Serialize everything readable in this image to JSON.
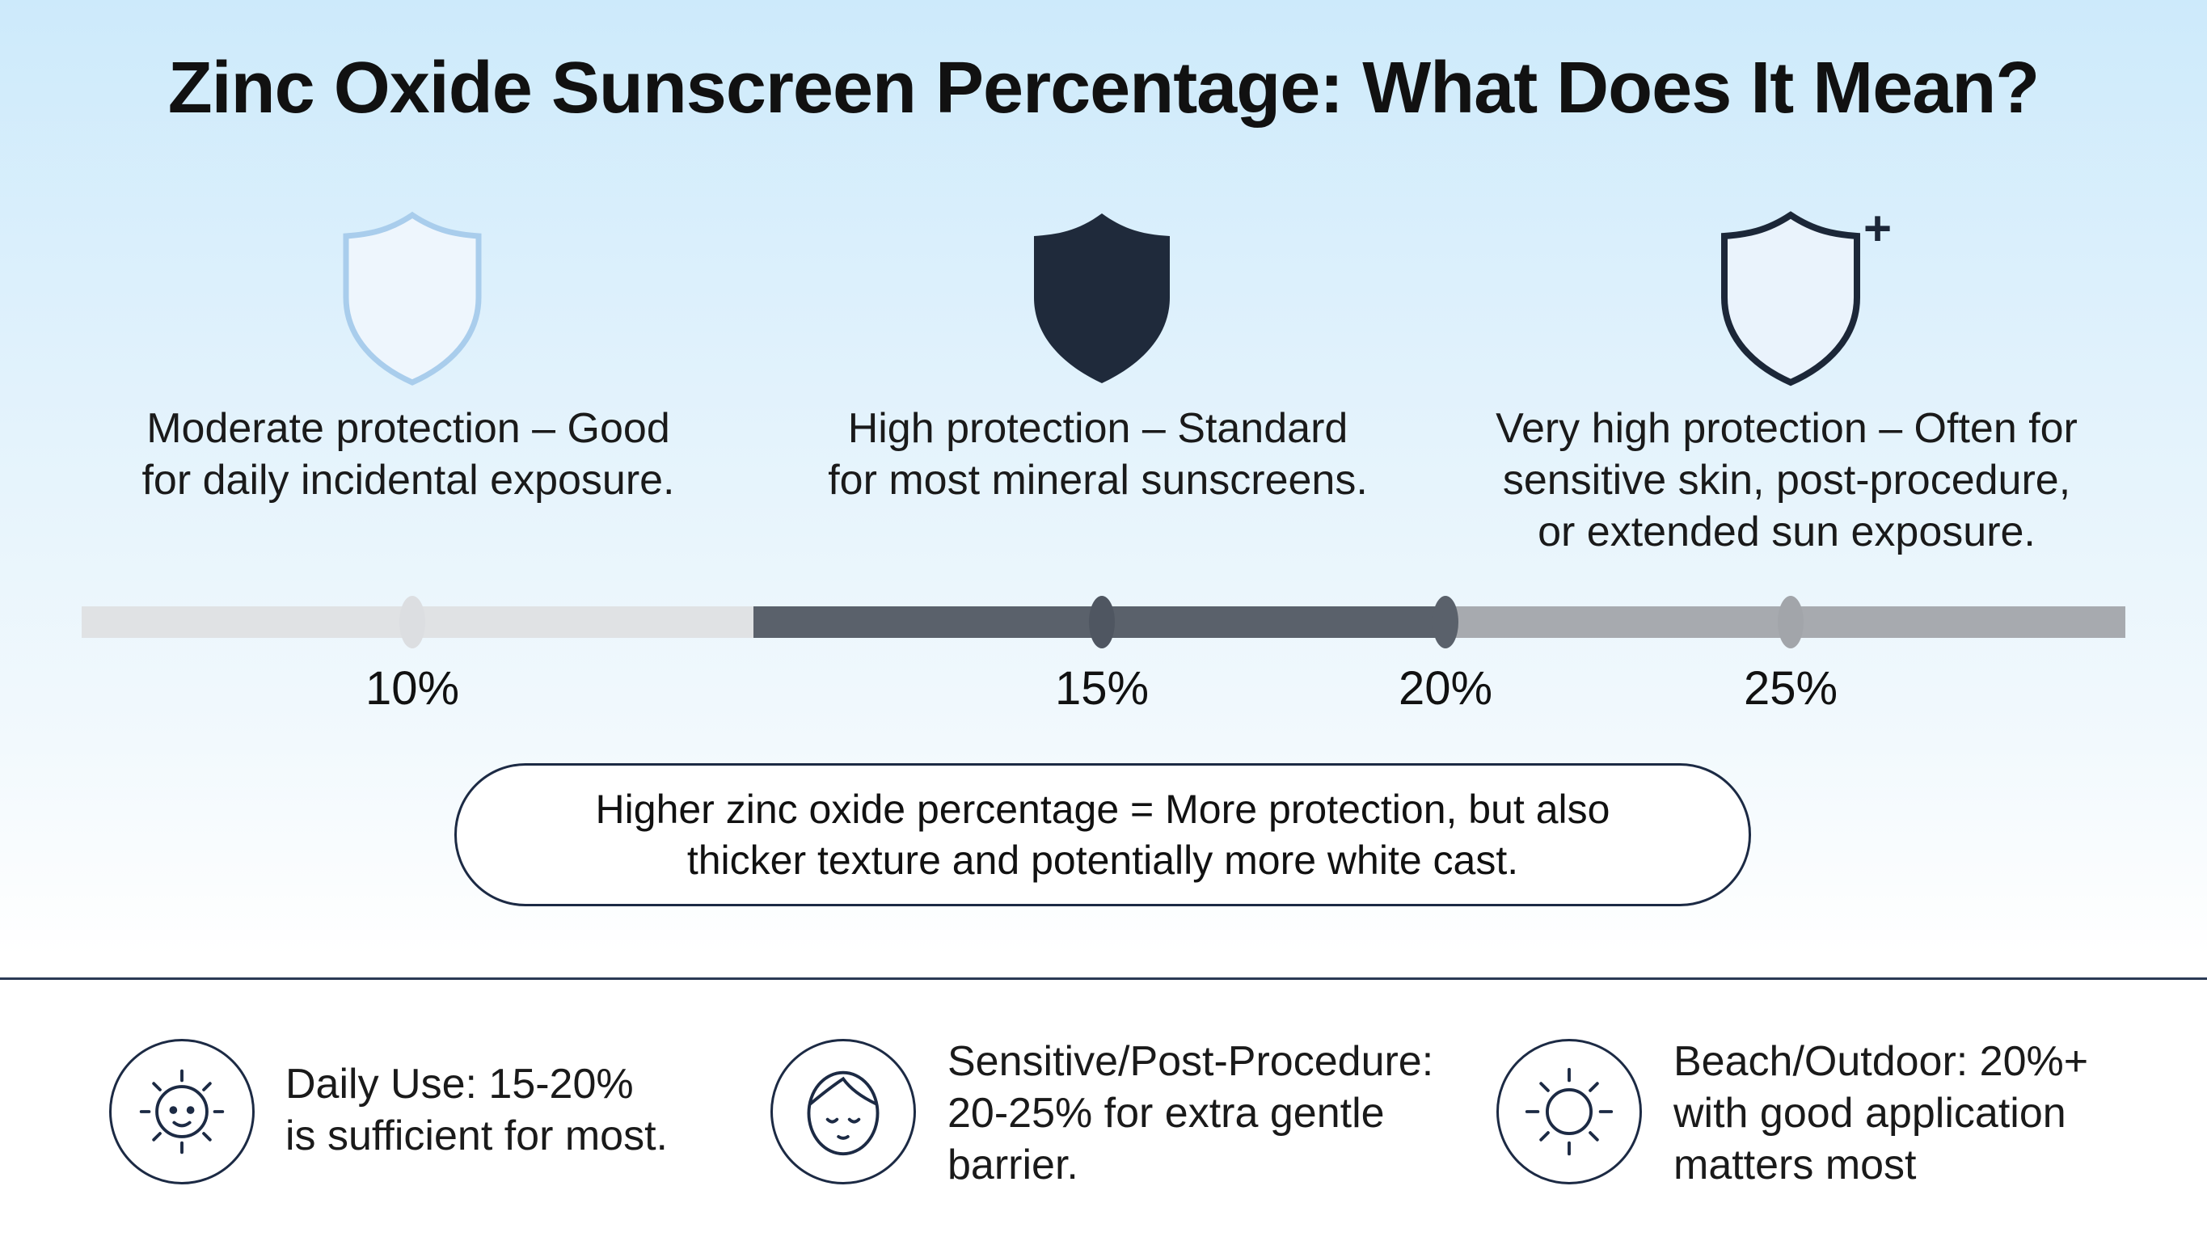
{
  "title": "Zinc Oxide Sunscreen Percentage: What Does It Mean?",
  "levels": [
    {
      "icon": "shield-outline-light-icon",
      "description_lines": [
        "Moderate protection – Good",
        "for daily incidental exposure."
      ]
    },
    {
      "icon": "shield-filled-dark-icon",
      "description_lines": [
        "High protection – Standard",
        "for most mineral sunscreens."
      ]
    },
    {
      "icon": "shield-plus-icon",
      "description_lines": [
        "Very high protection – Often for",
        "sensitive skin, post-procedure,",
        "or extended sun exposure."
      ]
    }
  ],
  "scale": {
    "ticks": [
      "10%",
      "15%",
      "20%",
      "25%"
    ],
    "colors": {
      "light": "#e0e2e4",
      "dark": "#5a616b",
      "mid": "#a7aaaf"
    }
  },
  "callout_lines": [
    "Higher zinc oxide percentage = More protection, but also",
    "thicker texture and potentially more white cast."
  ],
  "tips": [
    {
      "icon": "sun-face-icon",
      "lines": [
        "Daily Use: 15-20%",
        "is sufficient for most."
      ]
    },
    {
      "icon": "face-icon",
      "lines": [
        "Sensitive/Post-Procedure:",
        "20-25% for extra gentle",
        "barrier."
      ]
    },
    {
      "icon": "sun-icon",
      "lines": [
        "Beach/Outdoor: 20%+",
        "with good application",
        "matters most"
      ]
    }
  ]
}
